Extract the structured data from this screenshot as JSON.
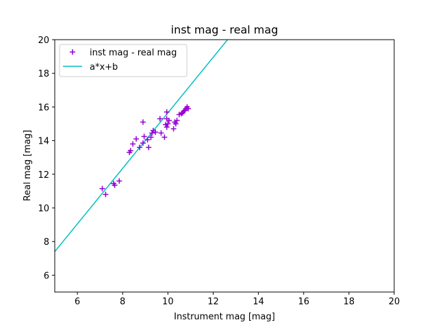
{
  "chart_data": {
    "type": "scatter",
    "title": "inst mag - real mag",
    "xlabel": "Instrument mag [mag]",
    "ylabel": "Real mag [mag]",
    "xlim": [
      5,
      20
    ],
    "ylim": [
      5,
      20
    ],
    "xticks": [
      "6",
      "8",
      "10",
      "12",
      "14",
      "16",
      "18",
      "20"
    ],
    "yticks": [
      "6",
      "8",
      "10",
      "12",
      "14",
      "16",
      "18",
      "20"
    ],
    "grid": false,
    "legend_position": "upper-left",
    "series": [
      {
        "name": "inst mag - real mag",
        "kind": "scatter",
        "marker": "plus",
        "color": "#9400d3",
        "points": [
          [
            7.1,
            11.15
          ],
          [
            7.25,
            10.8
          ],
          [
            7.6,
            11.45
          ],
          [
            7.65,
            11.35
          ],
          [
            7.85,
            11.6
          ],
          [
            8.3,
            13.3
          ],
          [
            8.35,
            13.4
          ],
          [
            8.45,
            13.8
          ],
          [
            8.6,
            14.1
          ],
          [
            8.75,
            13.6
          ],
          [
            8.9,
            13.85
          ],
          [
            8.9,
            15.1
          ],
          [
            8.95,
            14.25
          ],
          [
            9.1,
            14.05
          ],
          [
            9.15,
            13.6
          ],
          [
            9.25,
            14.2
          ],
          [
            9.3,
            14.45
          ],
          [
            9.35,
            14.6
          ],
          [
            9.45,
            14.5
          ],
          [
            9.65,
            15.3
          ],
          [
            9.7,
            14.45
          ],
          [
            9.85,
            14.2
          ],
          [
            9.9,
            14.95
          ],
          [
            9.95,
            14.8
          ],
          [
            9.95,
            15.3
          ],
          [
            9.95,
            15.7
          ],
          [
            10.05,
            15.2
          ],
          [
            10.0,
            15.0
          ],
          [
            10.25,
            14.7
          ],
          [
            10.3,
            15.1
          ],
          [
            10.35,
            15.0
          ],
          [
            10.4,
            15.2
          ],
          [
            10.5,
            15.55
          ],
          [
            10.6,
            15.6
          ],
          [
            10.65,
            15.65
          ],
          [
            10.7,
            15.75
          ],
          [
            10.75,
            15.8
          ],
          [
            10.8,
            15.9
          ],
          [
            10.85,
            16.0
          ],
          [
            10.9,
            15.9
          ]
        ]
      },
      {
        "name": "a*x+b",
        "kind": "line",
        "color": "#00bfbf",
        "slope": 1.65,
        "intercept": -0.85
      }
    ]
  }
}
